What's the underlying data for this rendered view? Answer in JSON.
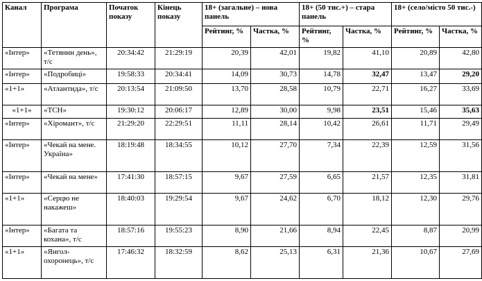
{
  "header": {
    "channel": "Канал",
    "program": "Програма",
    "start": "Початок показу",
    "end": "Кінець показу",
    "group1": "18+ (загальне) – нова панель",
    "group2": "18+ (50 тис.+) – стара панель",
    "group3": "18+ (село/місто 50 тис.-)",
    "rating": "Рейтинг, %",
    "share": "Частка, %"
  },
  "rows": [
    {
      "channel": "«Інтер»",
      "program": "«Тетянин день», т/с",
      "start": "20:34:42",
      "end": "21:29:19",
      "r1": "20,39",
      "s1": "42,01",
      "r2": "19,82",
      "s2": "41,10",
      "r3": "20,89",
      "s3": "42,80"
    },
    {
      "channel": "«Інтер»",
      "program": "«Подробиці»",
      "start": "19:58:33",
      "end": "20:34:41",
      "r1": "14,09",
      "s1": "30,73",
      "r2": "14,78",
      "s2": "32,47",
      "r3": "13,47",
      "s3": "29,20"
    },
    {
      "channel": "«1+1»",
      "program": "«Атлантида», т/с",
      "start": "20:13:54",
      "end": "21:09:50",
      "r1": "13,70",
      "s1": "28,58",
      "r2": "10,79",
      "s2": "22,71",
      "r3": "16,27",
      "s3": "33,69"
    },
    {
      "channel": "«1+1»",
      "program": "«ТСН»",
      "start": "19:30:12",
      "end": "20:06:17",
      "r1": "12,89",
      "s1": "30,00",
      "r2": "9,98",
      "s2": "23,51",
      "r3": "15,46",
      "s3": "35,63"
    },
    {
      "channel": "«Інтер»",
      "program": "«Хіромант», т/с",
      "start": "21:29:20",
      "end": "22:29:51",
      "r1": "11,11",
      "s1": "28,14",
      "r2": "10,42",
      "s2": "26,61",
      "r3": "11,71",
      "s3": "29,49"
    },
    {
      "channel": "«Інтер»",
      "program": "«Чекай на мене. Україна»",
      "start": "18:19:48",
      "end": "18:34:55",
      "r1": "10,12",
      "s1": "27,70",
      "r2": "7,34",
      "s2": "22,39",
      "r3": "12,59",
      "s3": "31,56"
    },
    {
      "channel": "«Інтер»",
      "program": "«Чекай на мене»",
      "start": "17:41:30",
      "end": "18:57:15",
      "r1": "9,67",
      "s1": "27,59",
      "r2": "6,65",
      "s2": "21,57",
      "r3": "12,35",
      "s3": "31,81"
    },
    {
      "channel": "«1+1»",
      "program": "«Серцю не накажеш»",
      "start": "18:40:03",
      "end": "19:29:54",
      "r1": "9,67",
      "s1": "24,62",
      "r2": "6,70",
      "s2": "18,12",
      "r3": "12,30",
      "s3": "29,76"
    },
    {
      "channel": "«Інтер»",
      "program": "«Багата та кохана», т/с",
      "start": "18:57:16",
      "end": "19:55:23",
      "r1": "8,90",
      "s1": "21,66",
      "r2": "8,94",
      "s2": "22,45",
      "r3": "8,87",
      "s3": "20,99"
    },
    {
      "channel": "«1+1»",
      "program": "«Янгол-охоронець», т/с",
      "start": "17:46:32",
      "end": "18:32:59",
      "r1": "8,62",
      "s1": "25,13",
      "r2": "6,31",
      "s2": "21,36",
      "r3": "10,67",
      "s3": "27,69"
    }
  ]
}
